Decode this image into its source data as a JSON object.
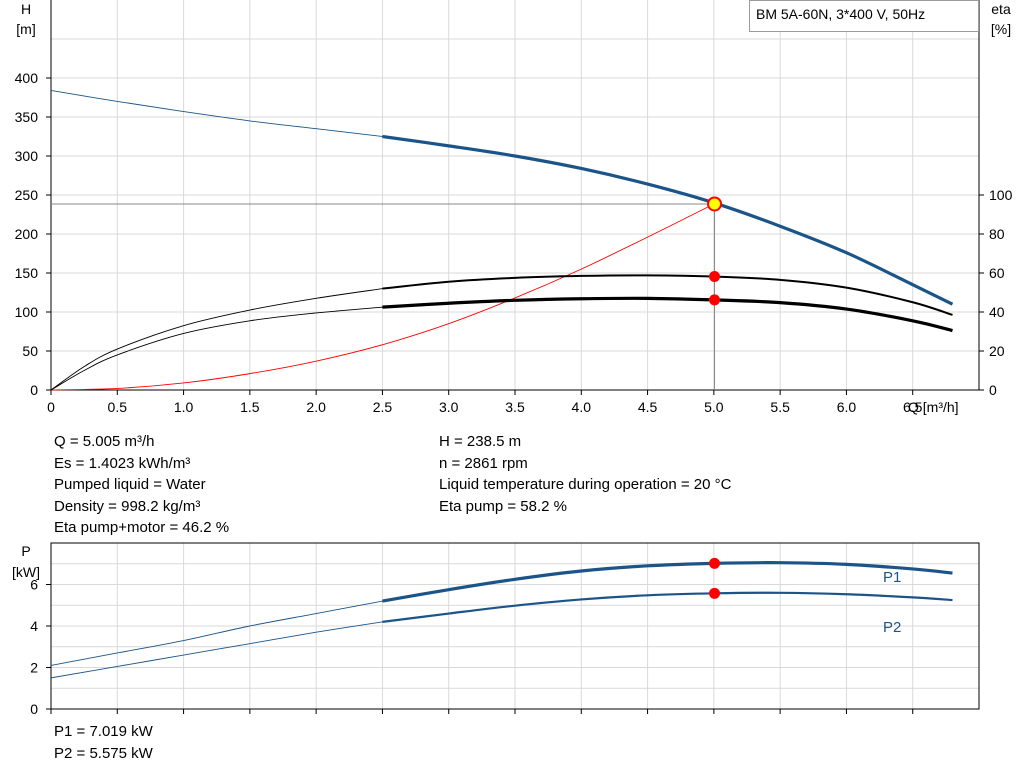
{
  "chart_data": [
    {
      "id": "qh",
      "type": "line",
      "title_box": "BM 5A-60N, 3*400 V, 50Hz",
      "xlabel": "Q [m³/h]",
      "ylabel_left": [
        "H",
        "[m]"
      ],
      "ylabel_right": [
        "eta",
        "[%]"
      ],
      "xlim": [
        0,
        7
      ],
      "xticks": [
        0,
        0.5,
        1.0,
        1.5,
        2.0,
        2.5,
        3.0,
        3.5,
        4.0,
        4.5,
        5.0,
        5.5,
        6.0,
        6.5
      ],
      "xtick_labels": [
        "0",
        "0.5",
        "1.0",
        "1.5",
        "2.0",
        "2.5",
        "3.0",
        "3.5",
        "4.0",
        "4.5",
        "5.0",
        "5.5",
        "6.0",
        "6.5"
      ],
      "ylim_left": [
        0,
        400
      ],
      "yticks_left": [
        0,
        50,
        100,
        150,
        200,
        250,
        300,
        350,
        400
      ],
      "ylim_right": [
        0,
        100
      ],
      "yticks_right": [
        0,
        20,
        40,
        60,
        80,
        100
      ],
      "grid": true,
      "operating_point": {
        "x": 5.005,
        "y": 238.5
      },
      "series": [
        {
          "axis": "left",
          "color": "#1b5489",
          "x": [
            0,
            0.5,
            1.0,
            1.5,
            2.0,
            2.5,
            3.0,
            3.5,
            4.0,
            4.5,
            5.0,
            5.5,
            6.0,
            6.5,
            6.8
          ],
          "values": [
            384,
            370,
            357,
            345,
            335,
            325,
            313,
            300,
            284,
            264,
            240,
            210,
            176,
            135,
            110
          ],
          "thin_until": 2.5
        },
        {
          "axis": "right",
          "color": "#000000",
          "point": 58.2,
          "x": [
            0,
            0.25,
            0.5,
            1.0,
            1.5,
            2.0,
            2.5,
            3.0,
            3.5,
            4.0,
            4.5,
            5.0,
            5.5,
            6.0,
            6.5,
            6.8
          ],
          "values": [
            0,
            12,
            21,
            33,
            41,
            47,
            52,
            55.5,
            57.5,
            58.5,
            58.8,
            58.2,
            56.5,
            52.5,
            45,
            38.5
          ],
          "thin_until": 2.5
        },
        {
          "axis": "right",
          "color": "#000000",
          "point": 46.2,
          "x": [
            0,
            0.25,
            0.5,
            1.0,
            1.5,
            2.0,
            2.5,
            3.0,
            3.5,
            4.0,
            4.5,
            5.0,
            5.5,
            6.0,
            6.5,
            6.8
          ],
          "values": [
            0,
            10,
            18,
            29,
            35.5,
            39.5,
            42.5,
            44.5,
            46,
            46.8,
            47,
            46.2,
            44.8,
            41.5,
            35.5,
            30.5
          ],
          "thin_until": 2.5
        },
        {
          "axis": "left",
          "color": "#ff0000",
          "thin_until": 99,
          "x": [
            0,
            0.5,
            1.0,
            1.5,
            2.0,
            2.5,
            3.0,
            3.5,
            4.0,
            4.5,
            5.0
          ],
          "values": [
            0,
            2,
            9,
            21,
            37,
            58,
            85,
            118,
            155,
            196,
            238.5
          ]
        }
      ]
    },
    {
      "id": "power",
      "type": "line",
      "ylabel": [
        "P",
        "[kW]"
      ],
      "xlim": [
        0,
        7
      ],
      "xticks": [
        0,
        0.5,
        1.0,
        1.5,
        2.0,
        2.5,
        3.0,
        3.5,
        4.0,
        4.5,
        5.0,
        5.5,
        6.0,
        6.5
      ],
      "ylim": [
        0,
        8
      ],
      "yticks": [
        0,
        2,
        4,
        6
      ],
      "grid": true,
      "series": [
        {
          "name": "P1",
          "color": "#1b5489",
          "point": 7.019,
          "thin_until": 2.5,
          "x": [
            0,
            0.5,
            1.0,
            1.5,
            2.0,
            2.5,
            3.0,
            3.5,
            4.0,
            4.5,
            5.0,
            5.5,
            6.0,
            6.5,
            6.8
          ],
          "values": [
            2.1,
            2.7,
            3.3,
            4.0,
            4.6,
            5.2,
            5.75,
            6.25,
            6.65,
            6.9,
            7.02,
            7.05,
            6.97,
            6.75,
            6.55
          ]
        },
        {
          "name": "P2",
          "color": "#1b5489",
          "point": 5.575,
          "thin_until": 2.5,
          "x": [
            0,
            0.5,
            1.0,
            1.5,
            2.0,
            2.5,
            3.0,
            3.5,
            4.0,
            4.5,
            5.0,
            5.5,
            6.0,
            6.5,
            6.8
          ],
          "values": [
            1.5,
            2.05,
            2.6,
            3.15,
            3.7,
            4.2,
            4.6,
            4.98,
            5.28,
            5.48,
            5.575,
            5.6,
            5.53,
            5.38,
            5.25
          ]
        }
      ]
    }
  ],
  "info_left": [
    "Q = 5.005 m³/h",
    "Es = 1.4023 kWh/m³",
    "Pumped liquid = Water",
    "Density = 998.2 kg/m³",
    "Eta pump+motor = 46.2 %"
  ],
  "info_right": [
    "H = 238.5 m",
    "n = 2861 rpm",
    "Liquid temperature during operation = 20 °C",
    "Eta pump = 58.2 %"
  ],
  "info_power": [
    "P1 = 7.019 kW",
    "P2 = 5.575 kW"
  ]
}
